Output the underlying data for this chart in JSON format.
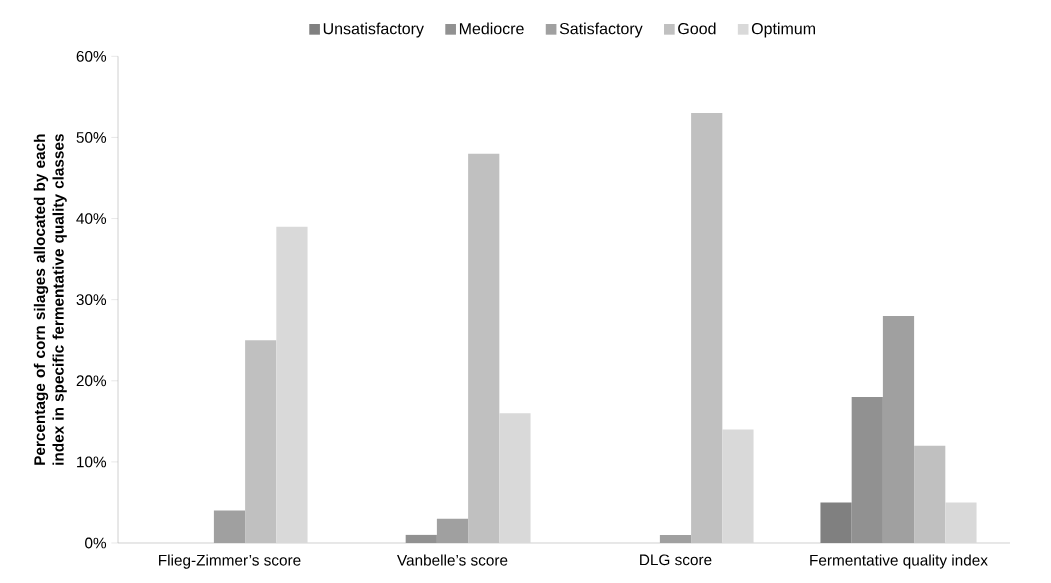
{
  "chart_data": {
    "type": "bar",
    "ylabel": "Percentage of corn silages allocated by each index in specific fermentative quality classes",
    "categories": [
      "Flieg-Zimmer’s score",
      "Vanbelle’s  score",
      "DLG  score",
      "Fermentative quality index"
    ],
    "series": [
      {
        "name": "Unsatisfactory",
        "color": "#808080",
        "values": [
          0,
          0,
          0,
          5
        ]
      },
      {
        "name": "Mediocre",
        "color": "#919191",
        "values": [
          0,
          1,
          0,
          18
        ]
      },
      {
        "name": "Satisfactory",
        "color": "#a0a0a0",
        "values": [
          4,
          3,
          1,
          28
        ]
      },
      {
        "name": "Good",
        "color": "#c0c0c0",
        "values": [
          25,
          48,
          53,
          12
        ]
      },
      {
        "name": "Optimum",
        "color": "#d9d9d9",
        "values": [
          39,
          16,
          14,
          5
        ]
      }
    ],
    "ylim": [
      0,
      60
    ],
    "yticks": [
      {
        "value": 0,
        "label": "0%"
      },
      {
        "value": 10,
        "label": "10%"
      },
      {
        "value": 20,
        "label": "20%"
      },
      {
        "value": 30,
        "label": "30%"
      },
      {
        "value": 40,
        "label": "40%"
      },
      {
        "value": 50,
        "label": "50%"
      },
      {
        "value": 60,
        "label": "60%"
      }
    ],
    "grid": false,
    "legend": "top"
  }
}
